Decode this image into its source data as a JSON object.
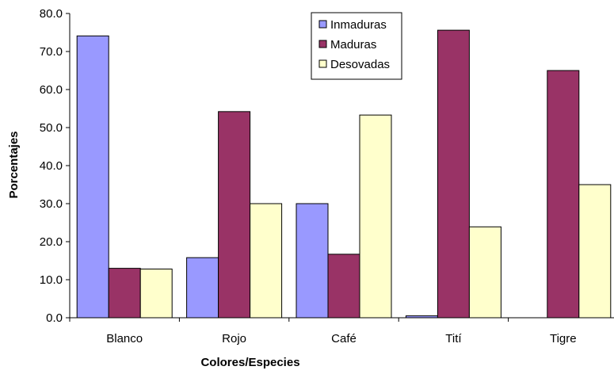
{
  "chart_data": {
    "type": "bar",
    "title": "",
    "xlabel": "Colores/Especies",
    "ylabel": "Porcentajes",
    "categories": [
      "Blanco",
      "Rojo",
      "Café",
      "Tití",
      "Tigre"
    ],
    "series": [
      {
        "name": "Inmaduras",
        "values": [
          74.1,
          15.8,
          30.0,
          0.5,
          0.0
        ]
      },
      {
        "name": "Maduras",
        "values": [
          13.0,
          54.2,
          16.7,
          75.6,
          65.0
        ]
      },
      {
        "name": "Desovadas",
        "values": [
          12.8,
          30.0,
          53.3,
          23.9,
          35.0
        ]
      }
    ],
    "ylim": [
      0,
      80
    ],
    "yticks": [
      "0.0",
      "10.0",
      "20.0",
      "30.0",
      "40.0",
      "50.0",
      "60.0",
      "70.0",
      "80.0"
    ],
    "grid": false,
    "legend_position": "top-right",
    "colors": {
      "Inmaduras": "#9999ff",
      "Maduras": "#993366",
      "Desovadas": "#ffffcc"
    }
  }
}
